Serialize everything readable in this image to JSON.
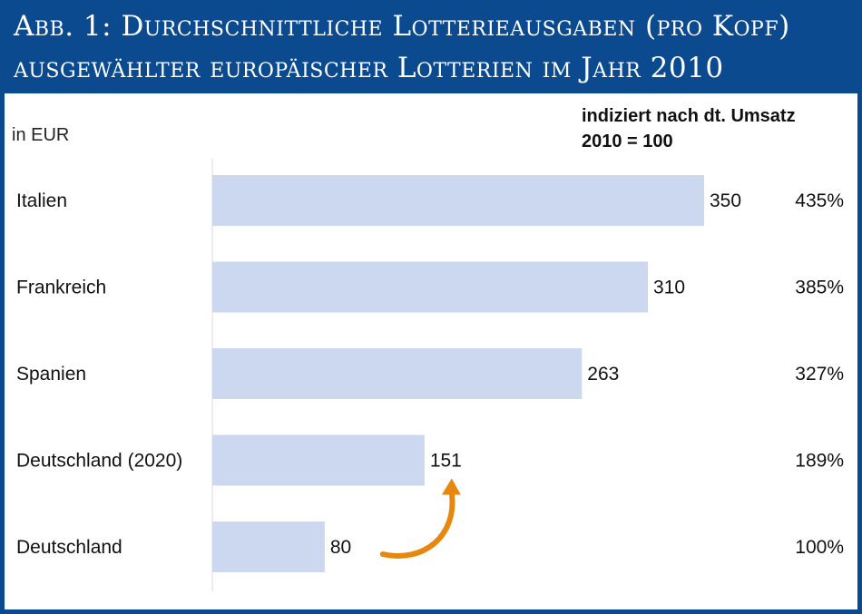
{
  "header": {
    "title_line1": "Abb. 1: Durchschnittliche Lotterieausgaben (pro Kopf)",
    "title_line2": "ausgewählter europäischer Lotterien im Jahr 2010"
  },
  "unit_label": "in EUR",
  "index_note": {
    "line1": "indiziert nach dt. Umsatz",
    "line2": "2010 = 100"
  },
  "colors": {
    "frame": "#0b4a8f",
    "bar": "#cbd8f0",
    "arrow": "#e8870e"
  },
  "chart_data": {
    "type": "bar",
    "orientation": "horizontal",
    "categories": [
      "Italien",
      "Frankreich",
      "Spanien",
      "Deutschland (2020)",
      "Deutschland"
    ],
    "values": [
      350,
      310,
      263,
      151,
      80
    ],
    "value_labels": [
      "350",
      "310",
      "263",
      "151",
      "80"
    ],
    "index_values": [
      "435%",
      "385%",
      "327%",
      "189%",
      "100%"
    ],
    "unit": "in EUR",
    "annotation": "arrow from Deutschland (80) to Deutschland (2020) (151)",
    "xlim": [
      0,
      350
    ],
    "grid": false,
    "legend": "none"
  }
}
